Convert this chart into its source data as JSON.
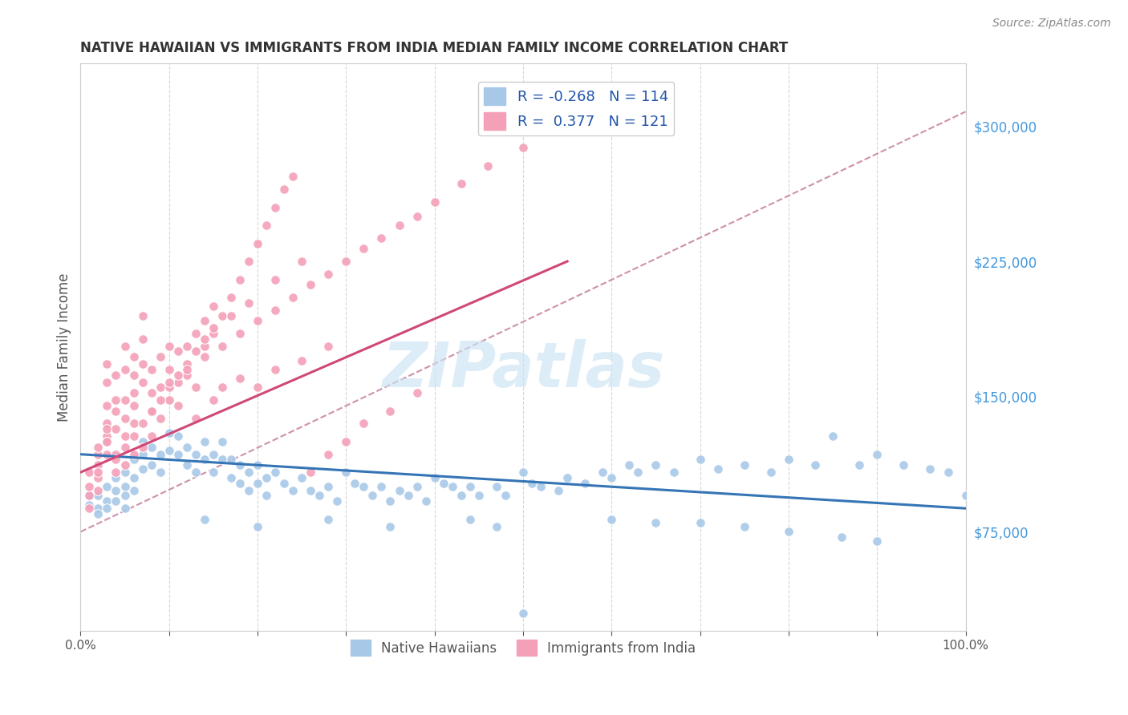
{
  "title": "NATIVE HAWAIIAN VS IMMIGRANTS FROM INDIA MEDIAN FAMILY INCOME CORRELATION CHART",
  "source": "Source: ZipAtlas.com",
  "ylabel": "Median Family Income",
  "ytick_values": [
    75000,
    150000,
    225000,
    300000
  ],
  "watermark": "ZIPatlas",
  "legend": {
    "blue_R": "-0.268",
    "blue_N": "114",
    "pink_R": "0.377",
    "pink_N": "121"
  },
  "blue_color": "#a8c8e8",
  "pink_color": "#f4a0b8",
  "blue_line_color": "#3575b5",
  "pink_line_color": "#d04878",
  "dashed_line_color": "#d090a8",
  "xmin": 0.0,
  "xmax": 1.0,
  "ymin": 20000,
  "ymax": 335000,
  "blue_scatter_x": [
    0.01,
    0.01,
    0.02,
    0.02,
    0.02,
    0.03,
    0.03,
    0.03,
    0.04,
    0.04,
    0.04,
    0.05,
    0.05,
    0.05,
    0.05,
    0.06,
    0.06,
    0.06,
    0.07,
    0.07,
    0.07,
    0.08,
    0.08,
    0.09,
    0.09,
    0.1,
    0.1,
    0.11,
    0.11,
    0.12,
    0.12,
    0.13,
    0.13,
    0.14,
    0.14,
    0.15,
    0.15,
    0.16,
    0.16,
    0.17,
    0.17,
    0.18,
    0.18,
    0.19,
    0.19,
    0.2,
    0.2,
    0.21,
    0.21,
    0.22,
    0.23,
    0.24,
    0.25,
    0.26,
    0.27,
    0.28,
    0.29,
    0.3,
    0.31,
    0.32,
    0.33,
    0.34,
    0.35,
    0.36,
    0.37,
    0.38,
    0.39,
    0.4,
    0.41,
    0.42,
    0.43,
    0.44,
    0.45,
    0.47,
    0.48,
    0.5,
    0.51,
    0.52,
    0.54,
    0.55,
    0.57,
    0.59,
    0.6,
    0.62,
    0.63,
    0.65,
    0.67,
    0.7,
    0.72,
    0.75,
    0.78,
    0.8,
    0.83,
    0.85,
    0.88,
    0.9,
    0.93,
    0.96,
    0.98,
    1.0,
    0.5,
    0.14,
    0.2,
    0.28,
    0.35,
    0.44,
    0.47,
    0.6,
    0.65,
    0.7,
    0.75,
    0.8,
    0.86,
    0.9
  ],
  "blue_scatter_y": [
    95000,
    90000,
    88000,
    95000,
    85000,
    100000,
    92000,
    88000,
    105000,
    98000,
    92000,
    108000,
    100000,
    95000,
    88000,
    115000,
    105000,
    98000,
    125000,
    118000,
    110000,
    122000,
    112000,
    118000,
    108000,
    130000,
    120000,
    128000,
    118000,
    122000,
    112000,
    118000,
    108000,
    125000,
    115000,
    118000,
    108000,
    125000,
    115000,
    115000,
    105000,
    112000,
    102000,
    108000,
    98000,
    112000,
    102000,
    105000,
    95000,
    108000,
    102000,
    98000,
    105000,
    98000,
    95000,
    100000,
    92000,
    108000,
    102000,
    100000,
    95000,
    100000,
    92000,
    98000,
    95000,
    100000,
    92000,
    105000,
    102000,
    100000,
    95000,
    100000,
    95000,
    100000,
    95000,
    108000,
    102000,
    100000,
    98000,
    105000,
    102000,
    108000,
    105000,
    112000,
    108000,
    112000,
    108000,
    115000,
    110000,
    112000,
    108000,
    115000,
    112000,
    128000,
    112000,
    118000,
    112000,
    110000,
    108000,
    95000,
    30000,
    82000,
    78000,
    82000,
    78000,
    82000,
    78000,
    82000,
    80000,
    80000,
    78000,
    75000,
    72000,
    70000
  ],
  "pink_scatter_x": [
    0.01,
    0.01,
    0.01,
    0.01,
    0.02,
    0.02,
    0.02,
    0.02,
    0.02,
    0.02,
    0.03,
    0.03,
    0.03,
    0.03,
    0.03,
    0.03,
    0.04,
    0.04,
    0.04,
    0.04,
    0.04,
    0.05,
    0.05,
    0.05,
    0.05,
    0.05,
    0.06,
    0.06,
    0.06,
    0.06,
    0.06,
    0.07,
    0.07,
    0.07,
    0.07,
    0.08,
    0.08,
    0.08,
    0.09,
    0.09,
    0.1,
    0.1,
    0.1,
    0.11,
    0.11,
    0.12,
    0.12,
    0.13,
    0.14,
    0.14,
    0.15,
    0.15,
    0.16,
    0.17,
    0.18,
    0.19,
    0.2,
    0.21,
    0.22,
    0.23,
    0.24,
    0.26,
    0.28,
    0.3,
    0.32,
    0.35,
    0.38,
    0.13,
    0.15,
    0.2,
    0.18,
    0.22,
    0.25,
    0.28,
    0.16,
    0.09,
    0.11,
    0.13,
    0.08,
    0.07,
    0.06,
    0.05,
    0.04,
    0.03,
    0.03,
    0.03,
    0.04,
    0.05,
    0.06,
    0.07,
    0.08,
    0.09,
    0.1,
    0.11,
    0.12,
    0.13,
    0.14,
    0.15,
    0.17,
    0.19,
    0.22,
    0.25,
    0.1,
    0.12,
    0.14,
    0.16,
    0.18,
    0.2,
    0.22,
    0.24,
    0.26,
    0.28,
    0.3,
    0.32,
    0.34,
    0.36,
    0.38,
    0.4,
    0.43,
    0.46,
    0.5
  ],
  "pink_scatter_y": [
    95000,
    100000,
    108000,
    88000,
    112000,
    105000,
    118000,
    122000,
    108000,
    98000,
    128000,
    145000,
    158000,
    168000,
    135000,
    125000,
    148000,
    162000,
    142000,
    132000,
    118000,
    165000,
    178000,
    148000,
    138000,
    128000,
    172000,
    162000,
    152000,
    145000,
    135000,
    182000,
    195000,
    168000,
    158000,
    152000,
    165000,
    142000,
    172000,
    155000,
    178000,
    165000,
    148000,
    175000,
    158000,
    178000,
    162000,
    185000,
    192000,
    178000,
    200000,
    185000,
    195000,
    205000,
    215000,
    225000,
    235000,
    245000,
    255000,
    265000,
    272000,
    108000,
    118000,
    125000,
    135000,
    142000,
    152000,
    138000,
    148000,
    155000,
    160000,
    165000,
    170000,
    178000,
    155000,
    138000,
    145000,
    155000,
    128000,
    122000,
    118000,
    112000,
    108000,
    118000,
    125000,
    132000,
    115000,
    122000,
    128000,
    135000,
    142000,
    148000,
    155000,
    162000,
    168000,
    175000,
    182000,
    188000,
    195000,
    202000,
    215000,
    225000,
    158000,
    165000,
    172000,
    178000,
    185000,
    192000,
    198000,
    205000,
    212000,
    218000,
    225000,
    232000,
    238000,
    245000,
    250000,
    258000,
    268000,
    278000,
    288000
  ],
  "blue_trend_x": [
    0.0,
    1.0
  ],
  "blue_trend_y": [
    118000,
    88000
  ],
  "pink_trend_x": [
    0.0,
    0.55
  ],
  "pink_trend_y": [
    108000,
    225000
  ],
  "dashed_trend_x": [
    0.0,
    1.0
  ],
  "dashed_trend_y": [
    75000,
    308000
  ]
}
